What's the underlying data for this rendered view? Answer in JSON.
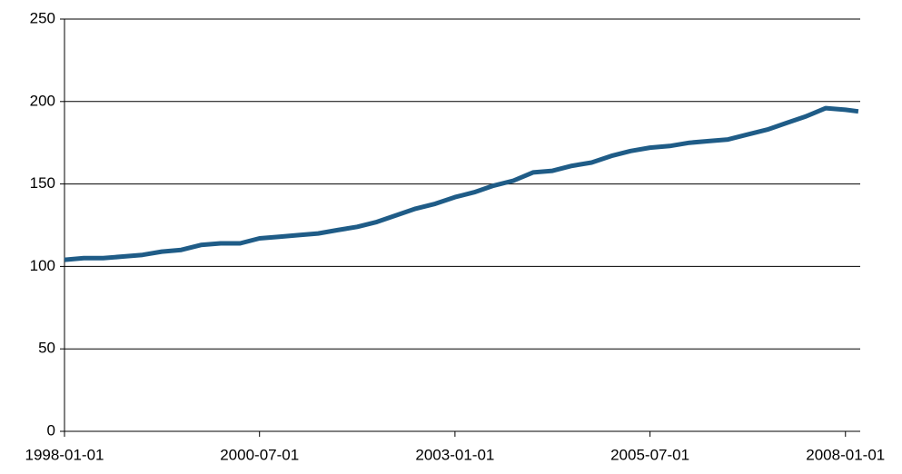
{
  "chart_data": {
    "type": "line",
    "x": [
      "1998-01-01",
      "1998-04-01",
      "1998-07-01",
      "1998-10-01",
      "1999-01-01",
      "1999-04-01",
      "1999-07-01",
      "1999-10-01",
      "2000-01-01",
      "2000-04-01",
      "2000-07-01",
      "2000-10-01",
      "2001-01-01",
      "2001-04-01",
      "2001-07-01",
      "2001-10-01",
      "2002-01-01",
      "2002-04-01",
      "2002-07-01",
      "2002-10-01",
      "2003-01-01",
      "2003-04-01",
      "2003-07-01",
      "2003-10-01",
      "2004-01-01",
      "2004-04-01",
      "2004-07-01",
      "2004-10-01",
      "2005-01-01",
      "2005-04-01",
      "2005-07-01",
      "2005-10-01",
      "2006-01-01",
      "2006-04-01",
      "2006-07-01",
      "2006-10-01",
      "2007-01-01",
      "2007-04-01",
      "2007-07-01",
      "2007-10-01",
      "2008-01-01",
      "2008-03-01"
    ],
    "series": [
      {
        "color": "#1f5c87",
        "values": [
          104,
          105,
          105,
          106,
          107,
          109,
          110,
          113,
          114,
          114,
          117,
          118,
          119,
          120,
          122,
          124,
          127,
          131,
          135,
          138,
          142,
          145,
          149,
          152,
          157,
          158,
          161,
          163,
          167,
          170,
          172,
          173,
          175,
          176,
          177,
          180,
          183,
          187,
          191,
          196,
          195,
          194
        ]
      }
    ],
    "xlim": [
      "1998-01-01",
      "2008-03-10"
    ],
    "xticks": [
      "1998-01-01",
      "2000-07-01",
      "2003-01-01",
      "2005-07-01",
      "2008-01-01"
    ],
    "ylim": [
      0,
      250
    ],
    "yticks": [
      0,
      50,
      100,
      150,
      200,
      250
    ],
    "grid": true
  }
}
